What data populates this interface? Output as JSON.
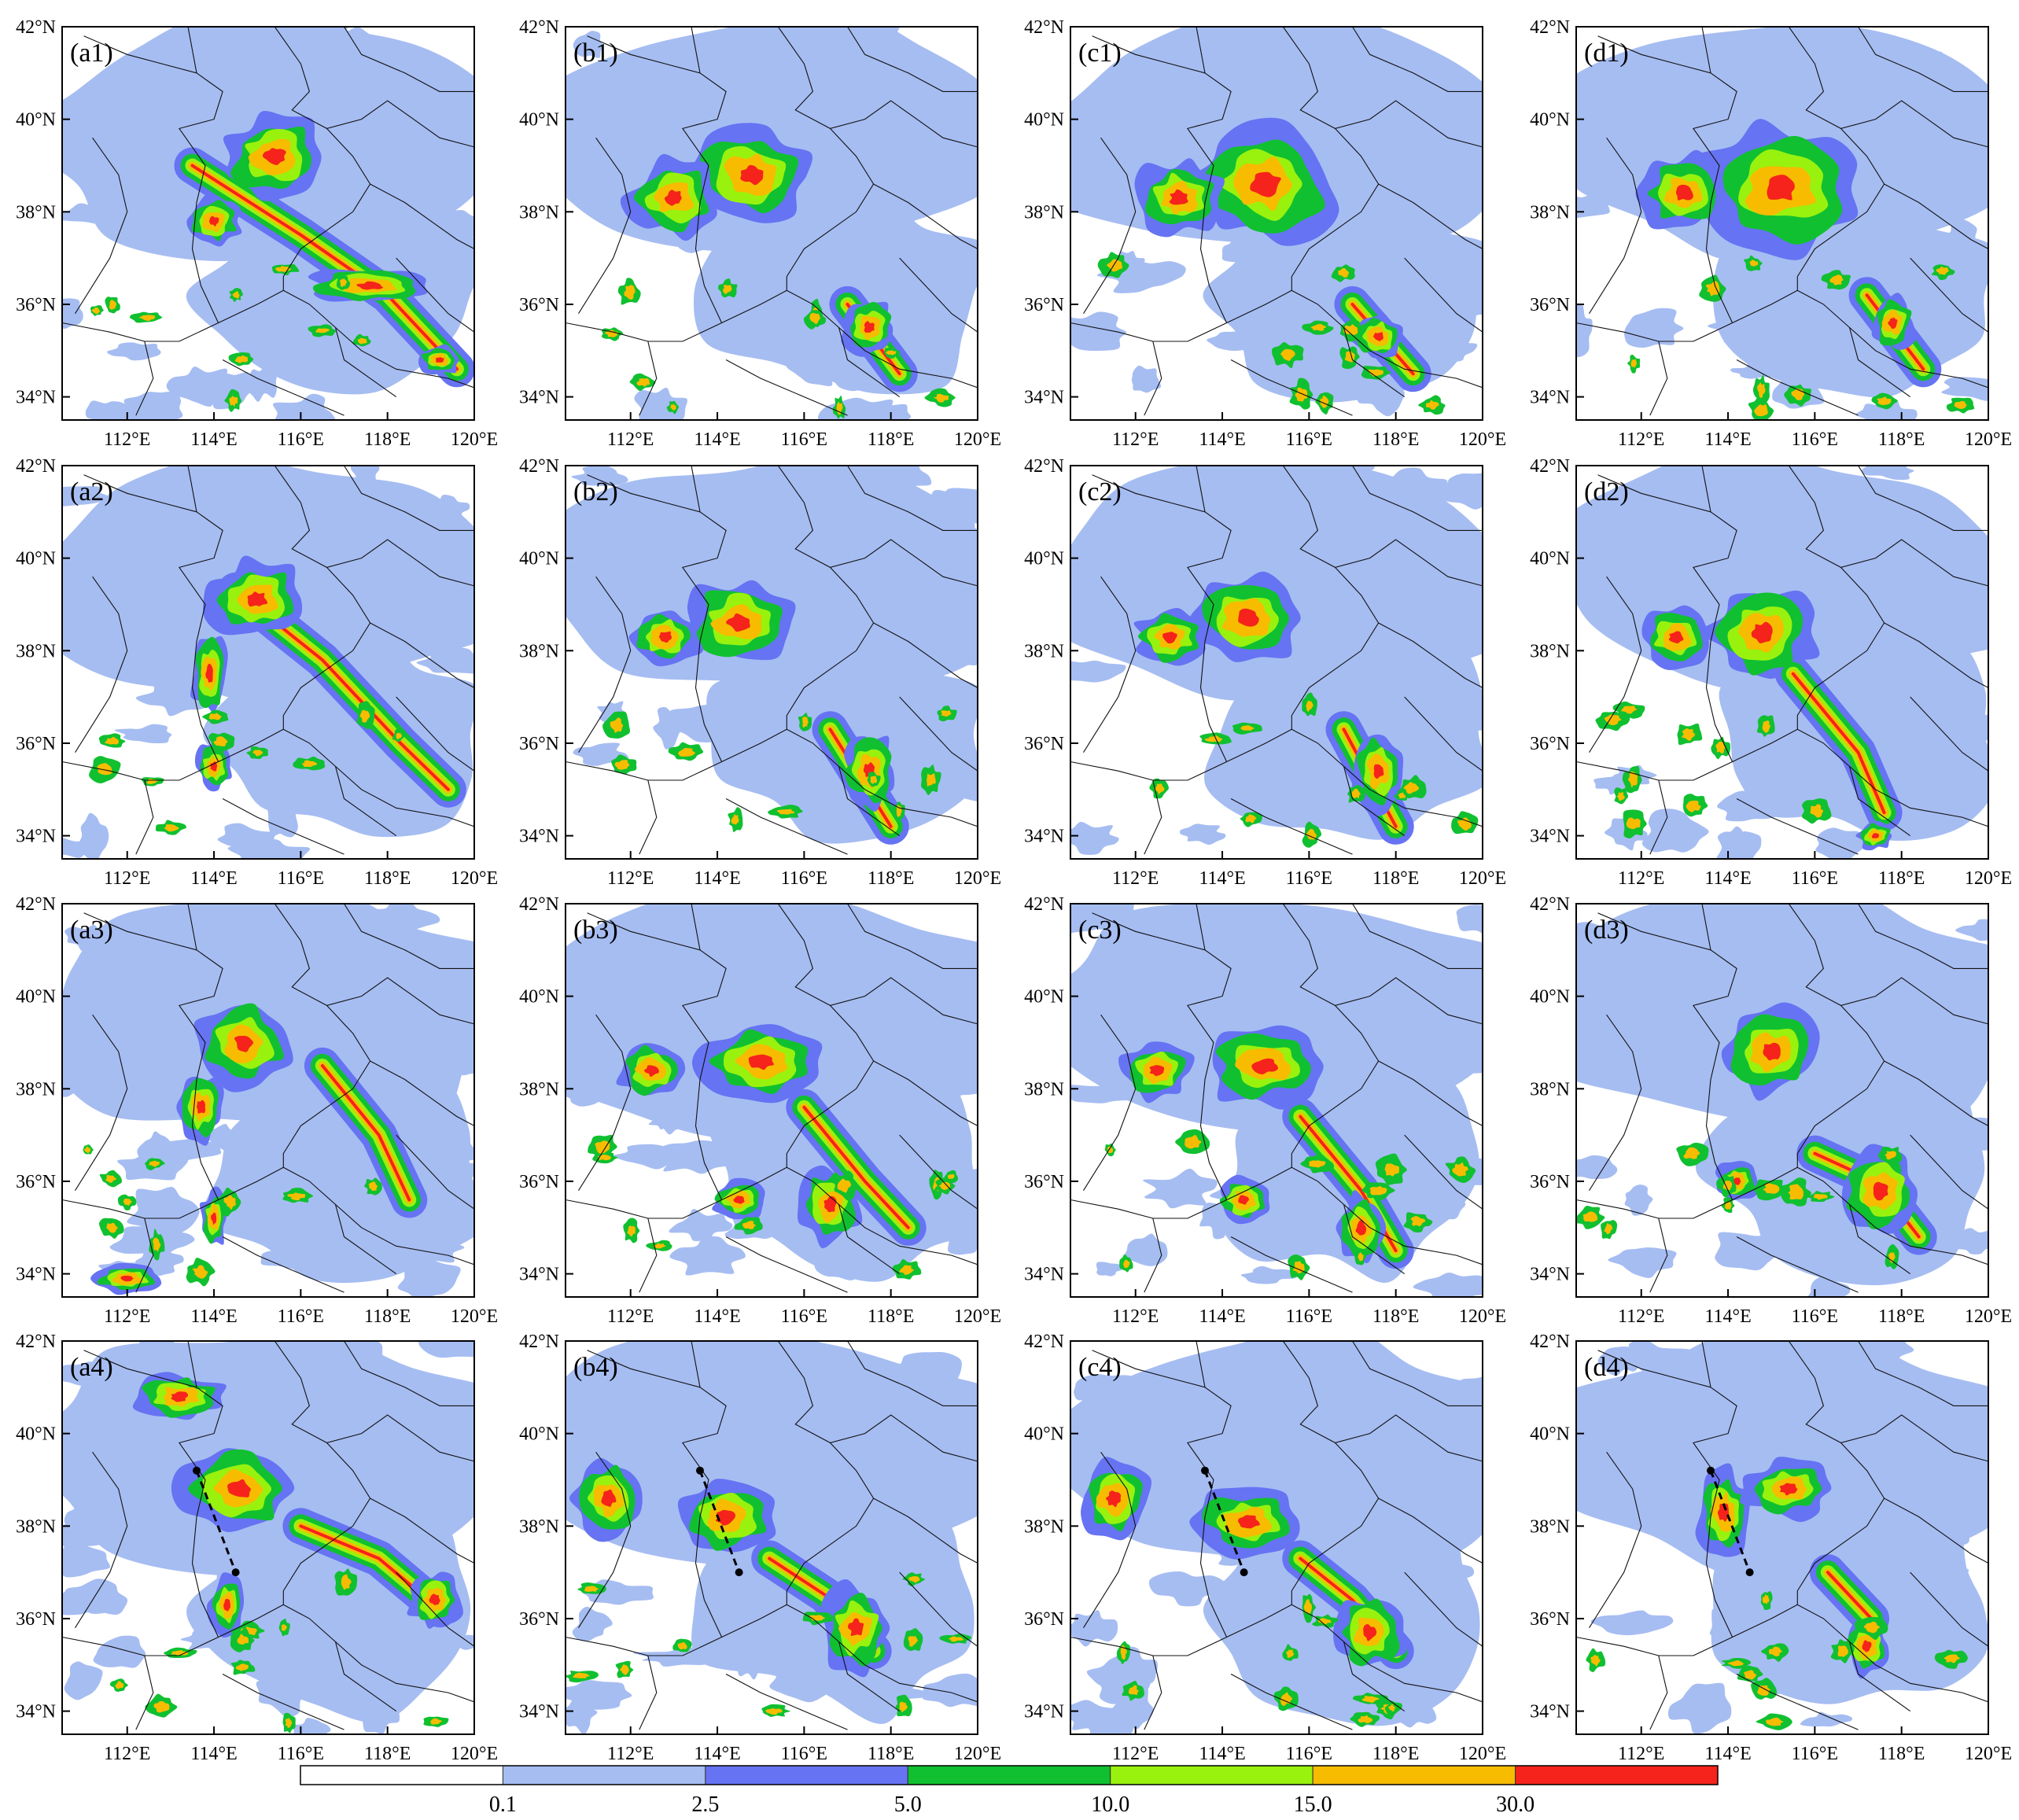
{
  "figure": {
    "lon_range": [
      110.5,
      120.0
    ],
    "lat_range": [
      33.5,
      42.0
    ],
    "lon_ticks": [
      "112°E",
      "114°E",
      "116°E",
      "118°E",
      "120°E"
    ],
    "lon_tick_values": [
      112,
      114,
      116,
      118,
      120
    ],
    "lat_ticks": [
      "34°N",
      "36°N",
      "38°N",
      "40°N",
      "42°N"
    ],
    "lat_tick_values": [
      34,
      36,
      38,
      40,
      42
    ],
    "panels": [
      {
        "label": "(a1)",
        "row": 0,
        "col": 0,
        "cores": [
          [
            115.4,
            39.2,
            1.2,
            0.9
          ],
          [
            114.0,
            37.8,
            0.6,
            0.5
          ],
          [
            117.6,
            36.4,
            1.4,
            0.4
          ],
          [
            119.2,
            34.8,
            0.5,
            0.3
          ]
        ],
        "band": [
          [
            113.5,
            39.0
          ],
          [
            116.0,
            37.5
          ],
          [
            118.0,
            36.2
          ],
          [
            119.6,
            34.6
          ]
        ]
      },
      {
        "label": "(b1)",
        "row": 0,
        "col": 1,
        "cores": [
          [
            114.8,
            38.8,
            1.4,
            1.0
          ],
          [
            113.0,
            38.3,
            1.0,
            0.8
          ],
          [
            117.5,
            35.5,
            0.6,
            0.6
          ]
        ],
        "band": [
          [
            117.0,
            36.0
          ],
          [
            118.2,
            34.5
          ]
        ]
      },
      {
        "label": "(c1)",
        "row": 0,
        "col": 2,
        "cores": [
          [
            115.0,
            38.6,
            1.6,
            1.2
          ],
          [
            113.0,
            38.3,
            1.0,
            0.8
          ],
          [
            117.6,
            35.3,
            0.6,
            0.5
          ]
        ],
        "band": [
          [
            117.0,
            36.0
          ],
          [
            118.4,
            34.5
          ]
        ]
      },
      {
        "label": "(d1)",
        "row": 0,
        "col": 3,
        "cores": [
          [
            115.2,
            38.5,
            1.8,
            1.3
          ],
          [
            113.0,
            38.4,
            1.0,
            0.8
          ],
          [
            117.8,
            35.6,
            0.5,
            0.6
          ]
        ],
        "band": [
          [
            117.2,
            36.2
          ],
          [
            118.5,
            34.6
          ]
        ]
      },
      {
        "label": "(a2)",
        "row": 1,
        "col": 0,
        "cores": [
          [
            115.0,
            39.1,
            1.1,
            0.8
          ],
          [
            113.9,
            37.5,
            0.4,
            0.9
          ],
          [
            114.0,
            35.5,
            0.4,
            0.5
          ]
        ],
        "band": [
          [
            114.5,
            39.3
          ],
          [
            116.5,
            37.8
          ],
          [
            118.3,
            36.0
          ],
          [
            119.4,
            35.0
          ]
        ]
      },
      {
        "label": "(b2)",
        "row": 1,
        "col": 1,
        "cores": [
          [
            114.5,
            38.6,
            1.3,
            0.9
          ],
          [
            112.8,
            38.3,
            0.8,
            0.6
          ],
          [
            117.5,
            35.4,
            0.6,
            0.8
          ]
        ],
        "band": [
          [
            116.6,
            36.3
          ],
          [
            118.0,
            34.2
          ]
        ]
      },
      {
        "label": "(c2)",
        "row": 1,
        "col": 2,
        "cores": [
          [
            114.6,
            38.7,
            1.3,
            0.9
          ],
          [
            112.8,
            38.3,
            0.8,
            0.6
          ],
          [
            117.6,
            35.4,
            0.6,
            0.8
          ]
        ],
        "band": [
          [
            116.8,
            36.3
          ],
          [
            118.0,
            34.2
          ]
        ]
      },
      {
        "label": "(d2)",
        "row": 1,
        "col": 3,
        "cores": [
          [
            114.8,
            38.4,
            1.2,
            1.0
          ],
          [
            112.8,
            38.3,
            0.8,
            0.6
          ],
          [
            117.4,
            34.0,
            0.4,
            0.3
          ]
        ],
        "band": [
          [
            115.5,
            37.5
          ],
          [
            117.0,
            35.8
          ],
          [
            117.6,
            34.5
          ]
        ]
      },
      {
        "label": "(a3)",
        "row": 2,
        "col": 0,
        "cores": [
          [
            114.7,
            39.0,
            1.1,
            0.9
          ],
          [
            113.7,
            37.6,
            0.5,
            0.7
          ],
          [
            114.0,
            35.2,
            0.3,
            0.6
          ],
          [
            112.0,
            33.9,
            0.8,
            0.3
          ]
        ],
        "band": [
          [
            116.5,
            38.5
          ],
          [
            117.8,
            37.0
          ],
          [
            118.5,
            35.6
          ]
        ]
      },
      {
        "label": "(b3)",
        "row": 2,
        "col": 1,
        "cores": [
          [
            115.0,
            38.6,
            1.4,
            0.8
          ],
          [
            112.5,
            38.4,
            0.8,
            0.6
          ],
          [
            116.6,
            35.5,
            0.7,
            0.8
          ],
          [
            114.5,
            35.6,
            0.6,
            0.4
          ]
        ],
        "band": [
          [
            116.0,
            37.6
          ],
          [
            117.4,
            36.0
          ],
          [
            118.4,
            35.0
          ]
        ]
      },
      {
        "label": "(c3)",
        "row": 2,
        "col": 2,
        "cores": [
          [
            115.0,
            38.5,
            1.4,
            0.8
          ],
          [
            112.5,
            38.4,
            0.8,
            0.6
          ],
          [
            114.5,
            35.6,
            0.6,
            0.5
          ],
          [
            117.2,
            35.0,
            0.6,
            0.7
          ]
        ],
        "band": [
          [
            115.8,
            37.4
          ],
          [
            117.2,
            35.8
          ],
          [
            118.0,
            34.5
          ]
        ]
      },
      {
        "label": "(d3)",
        "row": 2,
        "col": 3,
        "cores": [
          [
            115.0,
            38.8,
            1.1,
            0.9
          ],
          [
            114.2,
            36.0,
            0.5,
            0.4
          ],
          [
            117.5,
            35.8,
            0.9,
            0.9
          ]
        ],
        "band": [
          [
            116.0,
            36.6
          ],
          [
            117.4,
            36.0
          ],
          [
            118.4,
            34.8
          ]
        ]
      },
      {
        "label": "(a4)",
        "row": 3,
        "col": 0,
        "cores": [
          [
            114.6,
            38.8,
            1.3,
            0.9
          ],
          [
            113.2,
            40.8,
            1.0,
            0.5
          ],
          [
            114.3,
            36.3,
            0.4,
            0.6
          ],
          [
            119.1,
            36.4,
            0.6,
            0.6
          ]
        ],
        "band": [
          [
            116.0,
            38.0
          ],
          [
            117.8,
            37.3
          ],
          [
            119.2,
            36.2
          ]
        ]
      },
      {
        "label": "(b4)",
        "row": 3,
        "col": 1,
        "cores": [
          [
            114.2,
            38.2,
            1.1,
            0.8
          ],
          [
            111.5,
            38.6,
            0.8,
            0.8
          ],
          [
            117.2,
            35.8,
            0.8,
            0.9
          ]
        ],
        "band": [
          [
            115.2,
            37.3
          ],
          [
            116.5,
            36.5
          ],
          [
            117.6,
            35.3
          ]
        ]
      },
      {
        "label": "(c4)",
        "row": 3,
        "col": 2,
        "cores": [
          [
            114.6,
            38.1,
            1.2,
            0.7
          ],
          [
            111.5,
            38.6,
            0.8,
            0.8
          ],
          [
            117.4,
            35.7,
            0.8,
            0.8
          ]
        ],
        "band": [
          [
            115.8,
            37.3
          ],
          [
            117.0,
            36.4
          ],
          [
            118.0,
            35.3
          ]
        ]
      },
      {
        "label": "(d4)",
        "row": 3,
        "col": 3,
        "cores": [
          [
            113.9,
            38.3,
            0.6,
            0.9
          ],
          [
            115.4,
            38.8,
            1.0,
            0.6
          ],
          [
            117.2,
            35.4,
            0.5,
            0.6
          ]
        ],
        "band": [
          [
            116.3,
            37.0
          ],
          [
            117.3,
            36.0
          ]
        ]
      }
    ],
    "transect": {
      "start": [
        113.6,
        39.2
      ],
      "end": [
        114.5,
        37.0
      ]
    }
  },
  "legend": {
    "thresholds": [
      "0.1",
      "2.5",
      "5.0",
      "10.0",
      "15.0",
      "30.0"
    ],
    "colors": [
      "#ffffff",
      "#a6bdf2",
      "#6673f2",
      "#10c030",
      "#99f20e",
      "#f7bc00",
      "#f5231b"
    ]
  }
}
